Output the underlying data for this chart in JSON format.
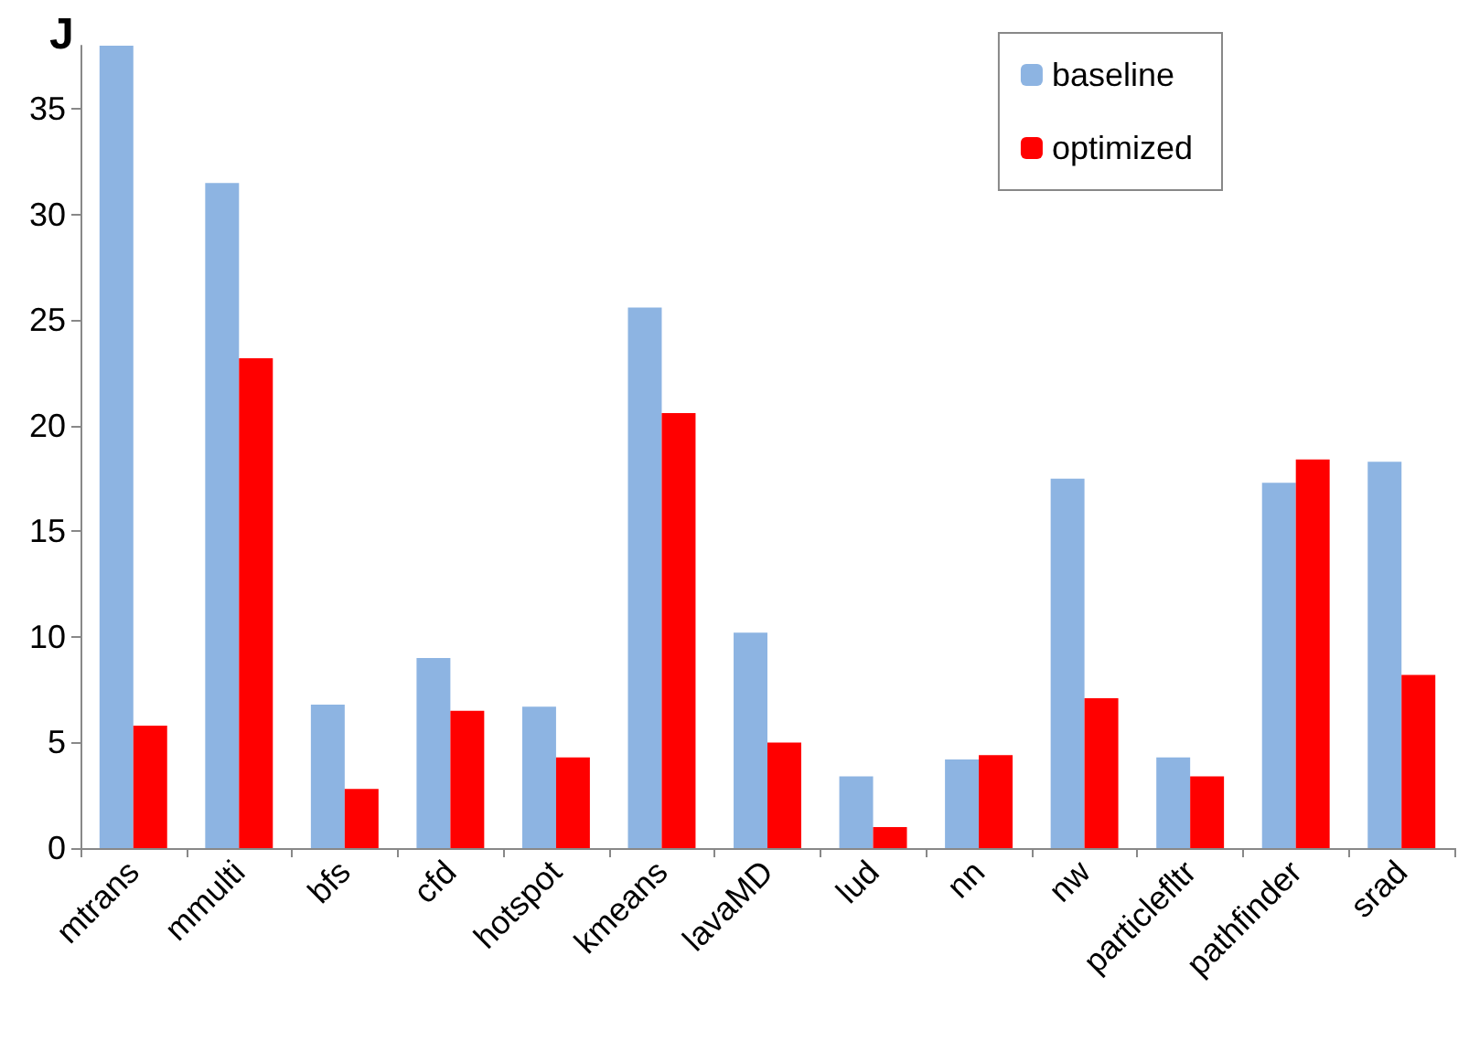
{
  "chart_data": {
    "type": "bar",
    "title": "J",
    "categories": [
      "mtrans",
      "mmulti",
      "bfs",
      "cfd",
      "hotspot",
      "kmeans",
      "lavaMD",
      "lud",
      "nn",
      "nw",
      "particlefltr",
      "pathfinder",
      "srad"
    ],
    "series": [
      {
        "name": "baseline",
        "color": "#8db4e2",
        "values": [
          38,
          31.5,
          6.8,
          9.0,
          6.7,
          25.6,
          10.2,
          3.4,
          4.2,
          17.5,
          4.3,
          17.3,
          18.3
        ]
      },
      {
        "name": "optimized",
        "color": "#ff0000",
        "values": [
          5.8,
          23.2,
          2.8,
          6.5,
          4.3,
          20.6,
          5.0,
          1.0,
          4.4,
          7.1,
          3.4,
          18.4,
          8.2
        ]
      }
    ],
    "ylim": [
      0,
      38
    ],
    "yticks": [
      0,
      5,
      10,
      15,
      20,
      25,
      30,
      35
    ],
    "grid": false,
    "legend": "top right"
  }
}
